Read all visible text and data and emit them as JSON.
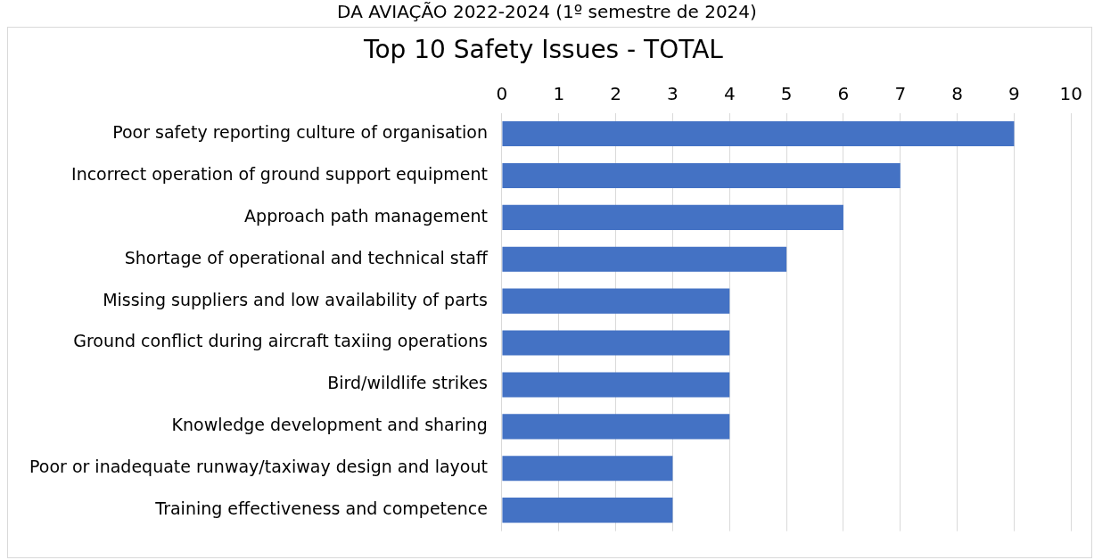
{
  "chart_data": {
    "type": "bar",
    "orientation": "horizontal",
    "title": "Top 10 Safety Issues - TOTAL",
    "annotations": [
      "DA AVIAÇÃO 2022-2024 (1º semestre de 2024)"
    ],
    "categories": [
      "Poor safety reporting culture of organisation",
      "Incorrect operation of ground support equipment",
      "Approach path management",
      "Shortage of operational and technical staff",
      "Missing suppliers and low availability of parts",
      "Ground conflict during aircraft taxiing operations",
      "Bird/wildlife strikes",
      "Knowledge development and sharing",
      "Poor or inadequate runway/taxiway design and layout",
      "Training effectiveness and competence"
    ],
    "values": [
      9,
      7,
      6,
      5,
      4,
      4,
      4,
      4,
      3,
      3
    ],
    "color": "#4472c4",
    "xlim": [
      0,
      10
    ],
    "xticks": [
      0,
      1,
      2,
      3,
      4,
      5,
      6,
      7,
      8,
      9,
      10
    ],
    "grid": "x",
    "legend": false
  }
}
